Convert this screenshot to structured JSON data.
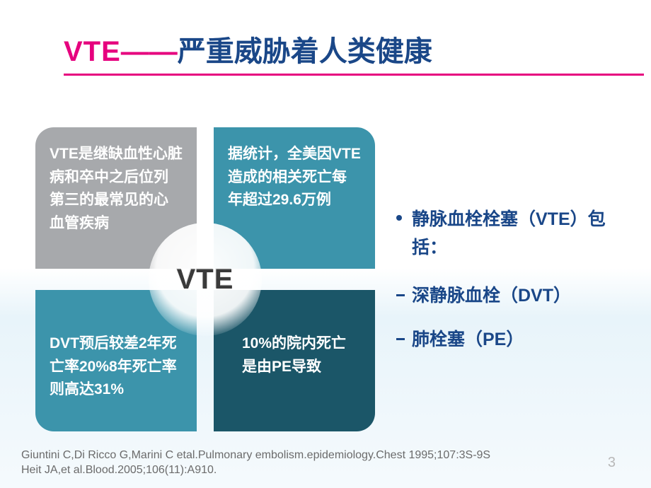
{
  "title": {
    "vte": "VTE",
    "dash": "——",
    "rest": "严重威胁着人类健康",
    "vte_color": "#e6007e",
    "rest_color": "#1a4788",
    "underline_color": "#e6007e",
    "font_size": 40
  },
  "diagram": {
    "center_label": "VTE",
    "center_fontsize": 40,
    "quad_fontsize": 21,
    "quad_text_color": "#ffffff",
    "corner_radius": 26,
    "quads": {
      "top_left": {
        "text": "VTE是继缺血性心脏病和卒中之后位列第三的最常见的心血管疾病",
        "bg_color": "#a7a9ac"
      },
      "top_right": {
        "text": "据统计，全美因VTE造成的相关死亡每年超过29.6万例",
        "bg_color": "#3c94ab"
      },
      "bottom_left": {
        "text": "DVT预后较差2年死亡率20%8年死亡率则高达31%",
        "bg_color": "#3c94ab"
      },
      "bottom_right": {
        "text": "10%的院内死亡是由PE导致",
        "bg_color": "#1b5668"
      }
    }
  },
  "bullets": {
    "text_color": "#1a4788",
    "font_size": 25,
    "main": "静脉血栓栓塞（VTE）包括：",
    "sub1": "深静脉血栓（DVT）",
    "sub2": "肺栓塞（PE）"
  },
  "citation": {
    "line1": "Giuntini C,Di Ricco G,Marini C etal.Pulmonary embolism.epidemiology.Chest 1995;107:3S-9S",
    "line2": "Heit JA,et al.Blood.2005;106(11):A910.",
    "color": "#6b6b6b",
    "font_size": 16
  },
  "page_number": "3",
  "page_number_color": "#b8b8b8",
  "background": {
    "top_color": "#ffffff",
    "bottom_tint": "#e8f4fa"
  }
}
